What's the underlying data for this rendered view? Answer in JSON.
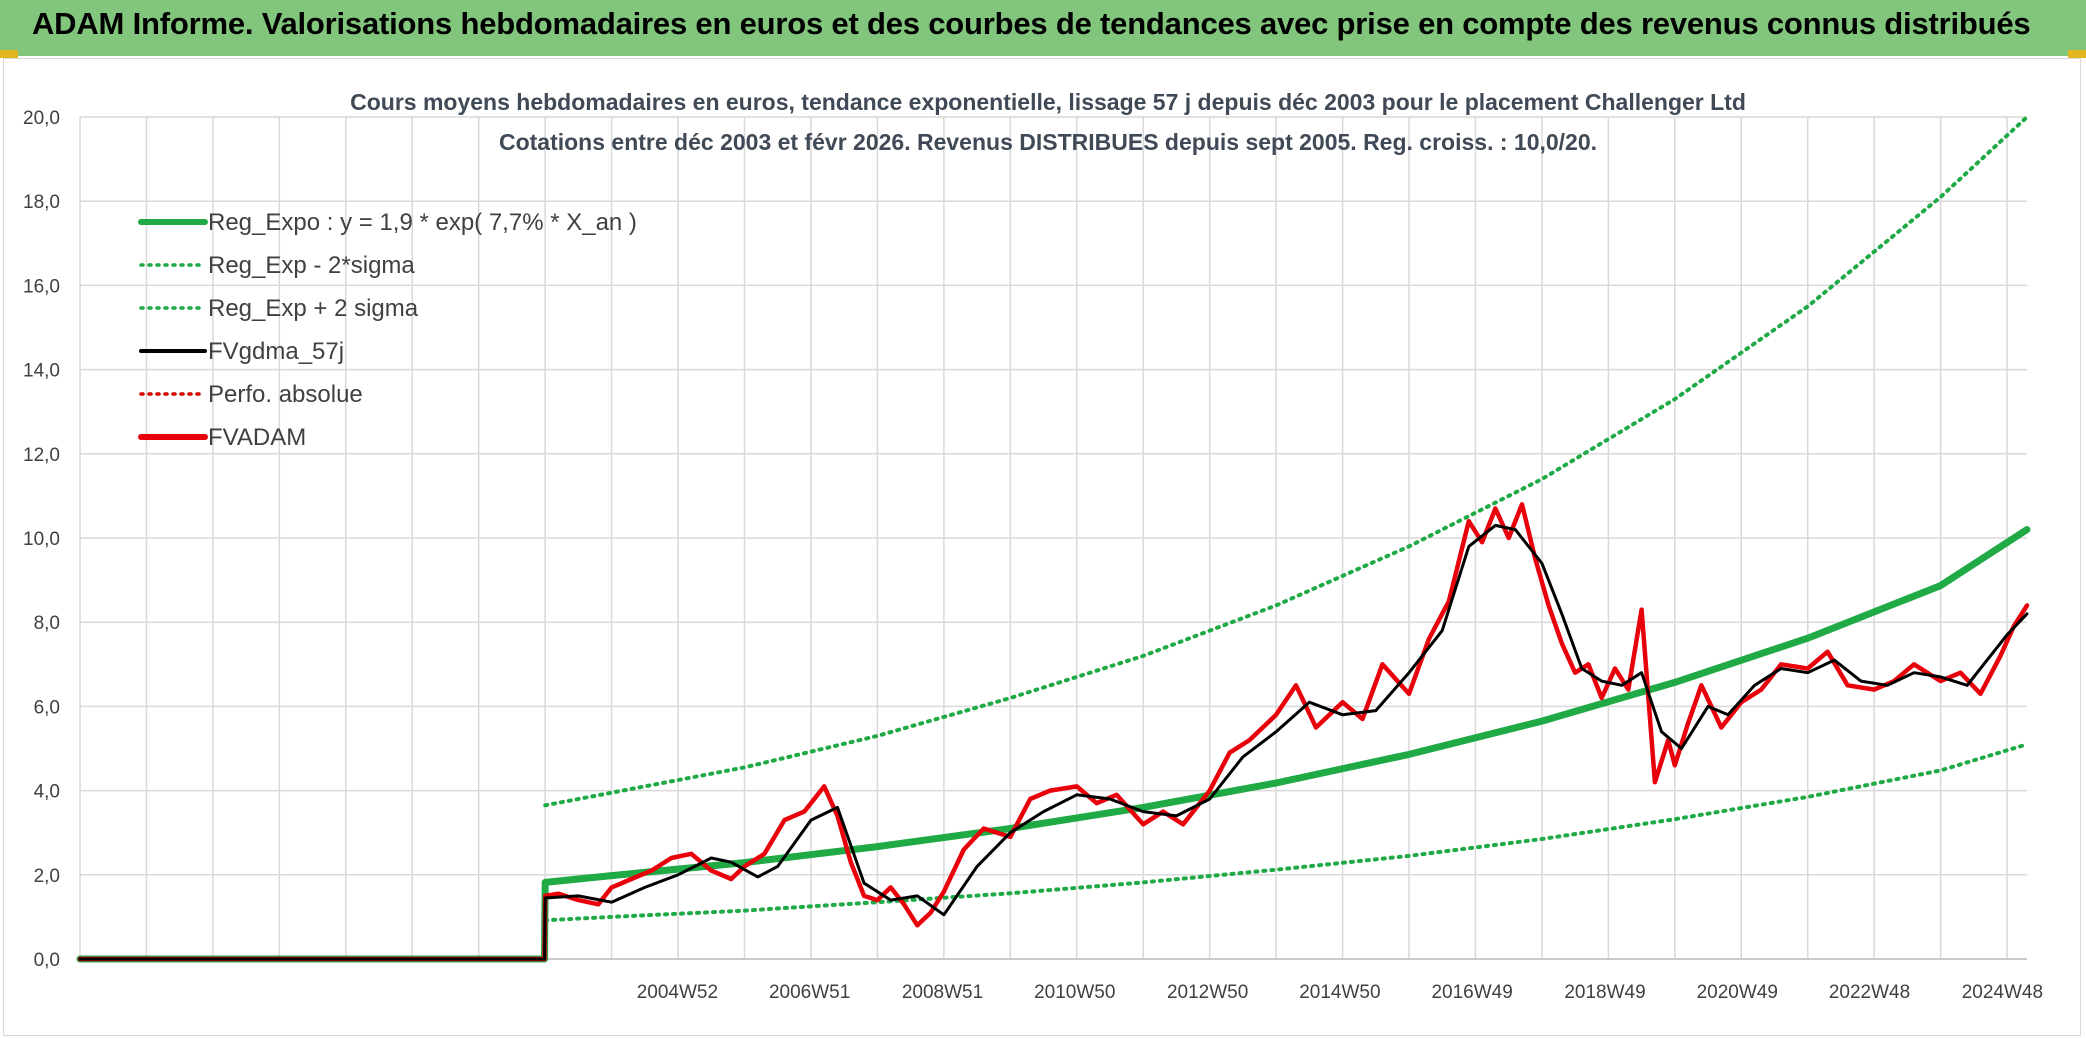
{
  "header": {
    "title": "ADAM Informe. Valorisations hebdomadaires en euros et des courbes de tendances avec prise en compte des revenus connus distribués"
  },
  "colors": {
    "banner": "#82c57c",
    "accent": "#e3b520",
    "reg_expo": "#1faa46",
    "fvgdma": "#000000",
    "fvadam": "#e8000b",
    "perfo": "#d40000",
    "grid": "#d9d9d9",
    "title_text": "#404a57"
  },
  "chart_data": {
    "type": "line",
    "title": "Cours moyens hebdomadaires en euros, tendance exponentielle, lissage 57 j depuis déc 2003 pour le placement Challenger Ltd",
    "subtitle": "Cotations entre déc 2003 et févr 2026. Revenus DISTRIBUES depuis sept 2005. Reg. croiss. : 10,0/20.",
    "xlabel": "",
    "ylabel": "",
    "ylim": [
      0,
      20
    ],
    "y_ticks": [
      "0,0",
      "2,0",
      "4,0",
      "6,0",
      "8,0",
      "10,0",
      "12,0",
      "14,0",
      "16,0",
      "18,0",
      "20,0"
    ],
    "x_ticks": [
      "2004W52",
      "2006W51",
      "2008W51",
      "2010W50",
      "2012W50",
      "2014W50",
      "2016W49",
      "2018W49",
      "2020W49",
      "2022W48",
      "2024W48"
    ],
    "x_tick_years": [
      2004.99,
      2006.98,
      2008.98,
      2010.97,
      2012.97,
      2014.96,
      2016.95,
      2018.95,
      2020.94,
      2022.93,
      2024.93
    ],
    "xlim": [
      1996.0,
      2025.3
    ],
    "grid": true,
    "legend_position": "top-left",
    "legend": [
      {
        "key": "reg_expo",
        "label": "Reg_Expo : y = 1,9 * exp( 7,7% *  X_an )",
        "style": "thick",
        "color": "#1faa46"
      },
      {
        "key": "reg_minus",
        "label": "Reg_Exp - 2*sigma",
        "style": "dotted",
        "color": "#1faa46"
      },
      {
        "key": "reg_plus",
        "label": "Reg_Exp + 2 sigma",
        "style": "dotted",
        "color": "#1faa46"
      },
      {
        "key": "fvgdma",
        "label": "FVgdma_57j",
        "style": "solid",
        "color": "#000000"
      },
      {
        "key": "perfo",
        "label": "Perfo. absolue",
        "style": "dotted",
        "color": "#d40000"
      },
      {
        "key": "fvadam",
        "label": "FVADAM",
        "style": "thick",
        "color": "#e8000b"
      }
    ],
    "series": [
      {
        "name": "Reg_Expo : y = 1,9 * exp( 7,7% *  X_an )",
        "x": [
          1996.0,
          2002.99,
          2003.0,
          2004.0,
          2006.0,
          2008.0,
          2010.0,
          2012.0,
          2014.0,
          2016.0,
          2018.0,
          2020.0,
          2022.0,
          2024.0,
          2025.3
        ],
        "values": [
          0,
          0,
          1.82,
          1.98,
          2.29,
          2.67,
          3.1,
          3.6,
          4.18,
          4.86,
          5.65,
          6.57,
          7.62,
          8.87,
          10.2
        ]
      },
      {
        "name": "Reg_Exp - 2*sigma",
        "x": [
          2003.0,
          2004.0,
          2006.0,
          2008.0,
          2010.0,
          2012.0,
          2014.0,
          2016.0,
          2018.0,
          2020.0,
          2022.0,
          2024.0,
          2025.3
        ],
        "values": [
          0.92,
          1.0,
          1.15,
          1.35,
          1.56,
          1.82,
          2.12,
          2.45,
          2.85,
          3.32,
          3.85,
          4.48,
          5.1
        ]
      },
      {
        "name": "Reg_Exp + 2 sigma",
        "x": [
          2003.0,
          2004.0,
          2006.0,
          2008.0,
          2010.0,
          2012.0,
          2014.0,
          2016.0,
          2018.0,
          2020.0,
          2022.0,
          2024.0,
          2025.3
        ],
        "values": [
          3.65,
          3.95,
          4.55,
          5.3,
          6.2,
          7.2,
          8.4,
          9.8,
          11.4,
          13.3,
          15.5,
          18.1,
          20.0
        ]
      },
      {
        "name": "FVgdma_57j",
        "x": [
          1996.0,
          2002.99,
          2003.0,
          2003.5,
          2004.0,
          2004.5,
          2005.0,
          2005.5,
          2005.8,
          2006.2,
          2006.5,
          2007.0,
          2007.4,
          2007.8,
          2008.2,
          2008.6,
          2009.0,
          2009.5,
          2010.0,
          2010.5,
          2011.0,
          2011.5,
          2012.0,
          2012.5,
          2013.0,
          2013.5,
          2014.0,
          2014.5,
          2015.0,
          2015.5,
          2016.0,
          2016.5,
          2016.9,
          2017.3,
          2017.6,
          2018.0,
          2018.3,
          2018.6,
          2018.9,
          2019.2,
          2019.5,
          2019.8,
          2020.1,
          2020.5,
          2020.8,
          2021.2,
          2021.6,
          2022.0,
          2022.4,
          2022.8,
          2023.2,
          2023.6,
          2024.0,
          2024.4,
          2024.7,
          2025.0,
          2025.3
        ],
        "values": [
          0,
          0,
          1.45,
          1.5,
          1.35,
          1.7,
          2.0,
          2.4,
          2.3,
          1.95,
          2.2,
          3.3,
          3.6,
          1.8,
          1.4,
          1.5,
          1.05,
          2.2,
          3.0,
          3.5,
          3.9,
          3.8,
          3.5,
          3.4,
          3.8,
          4.8,
          5.4,
          6.1,
          5.8,
          5.9,
          6.8,
          7.8,
          9.8,
          10.3,
          10.2,
          9.4,
          8.2,
          6.9,
          6.6,
          6.5,
          6.8,
          5.4,
          5.0,
          6.0,
          5.8,
          6.5,
          6.9,
          6.8,
          7.1,
          6.6,
          6.5,
          6.8,
          6.7,
          6.5,
          7.1,
          7.7,
          8.2
        ]
      },
      {
        "name": "Perfo. absolue",
        "x": [
          1996.0,
          2002.99
        ],
        "values": [
          0,
          0
        ]
      },
      {
        "name": "FVADAM",
        "x": [
          1996.0,
          2002.99,
          2003.0,
          2003.2,
          2003.5,
          2003.8,
          2004.0,
          2004.3,
          2004.6,
          2004.9,
          2005.2,
          2005.5,
          2005.8,
          2006.0,
          2006.3,
          2006.6,
          2006.9,
          2007.2,
          2007.4,
          2007.6,
          2007.8,
          2008.0,
          2008.2,
          2008.4,
          2008.6,
          2008.8,
          2009.0,
          2009.3,
          2009.6,
          2010.0,
          2010.3,
          2010.6,
          2011.0,
          2011.3,
          2011.6,
          2012.0,
          2012.3,
          2012.6,
          2013.0,
          2013.3,
          2013.6,
          2014.0,
          2014.3,
          2014.6,
          2015.0,
          2015.3,
          2015.6,
          2016.0,
          2016.3,
          2016.6,
          2016.9,
          2017.1,
          2017.3,
          2017.5,
          2017.7,
          2017.9,
          2018.1,
          2018.3,
          2018.5,
          2018.7,
          2018.9,
          2019.1,
          2019.3,
          2019.5,
          2019.7,
          2019.9,
          2020.0,
          2020.2,
          2020.4,
          2020.7,
          2021.0,
          2021.3,
          2021.6,
          2022.0,
          2022.3,
          2022.6,
          2023.0,
          2023.3,
          2023.6,
          2024.0,
          2024.3,
          2024.6,
          2024.9,
          2025.1,
          2025.3
        ],
        "values": [
          0,
          0,
          1.5,
          1.55,
          1.4,
          1.3,
          1.7,
          1.9,
          2.1,
          2.4,
          2.5,
          2.1,
          1.9,
          2.2,
          2.5,
          3.3,
          3.5,
          4.1,
          3.4,
          2.3,
          1.5,
          1.4,
          1.7,
          1.3,
          0.8,
          1.1,
          1.6,
          2.6,
          3.1,
          2.9,
          3.8,
          4.0,
          4.1,
          3.7,
          3.9,
          3.2,
          3.5,
          3.2,
          4.0,
          4.9,
          5.2,
          5.8,
          6.5,
          5.5,
          6.1,
          5.7,
          7.0,
          6.3,
          7.6,
          8.5,
          10.4,
          9.9,
          10.7,
          10.0,
          10.8,
          9.5,
          8.4,
          7.5,
          6.8,
          7.0,
          6.2,
          6.9,
          6.4,
          8.3,
          4.2,
          5.2,
          4.6,
          5.6,
          6.5,
          5.5,
          6.1,
          6.4,
          7.0,
          6.9,
          7.3,
          6.5,
          6.4,
          6.6,
          7.0,
          6.6,
          6.8,
          6.3,
          7.2,
          7.9,
          8.4
        ]
      }
    ]
  }
}
